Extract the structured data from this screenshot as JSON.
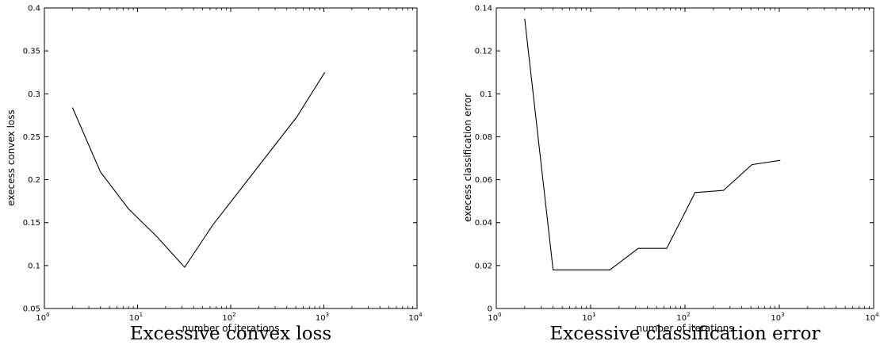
{
  "chart_data": [
    {
      "type": "line",
      "caption": "Excessive convex loss",
      "xlabel": "number of iterations",
      "ylabel": "execess convex loss",
      "xscale": "log",
      "xlim": [
        1,
        10000
      ],
      "ylim": [
        0.05,
        0.4
      ],
      "xticks": [
        1,
        10,
        100,
        1000,
        10000
      ],
      "xtick_labels": [
        {
          "base": "10",
          "exp": "0"
        },
        {
          "base": "10",
          "exp": "1"
        },
        {
          "base": "10",
          "exp": "2"
        },
        {
          "base": "10",
          "exp": "3"
        },
        {
          "base": "10",
          "exp": "4"
        }
      ],
      "yticks": [
        0.05,
        0.1,
        0.15,
        0.2,
        0.25,
        0.3,
        0.35,
        0.4
      ],
      "ytick_labels": [
        "0.05",
        "0.1",
        "0.15",
        "0.2",
        "0.25",
        "0.3",
        "0.35",
        "0.4"
      ],
      "grid": false,
      "series": [
        {
          "x": [
            2,
            4,
            8,
            16,
            32,
            64,
            128,
            256,
            512,
            1024
          ],
          "y": [
            0.284,
            0.209,
            0.166,
            0.134,
            0.098,
            0.147,
            0.189,
            0.231,
            0.273,
            0.325
          ]
        }
      ]
    },
    {
      "type": "line",
      "caption": "Excessive classification error",
      "xlabel": "number of iterations",
      "ylabel": "execess classification error",
      "xscale": "log",
      "xlim": [
        1,
        10000
      ],
      "ylim": [
        0,
        0.14
      ],
      "xticks": [
        1,
        10,
        100,
        1000,
        10000
      ],
      "xtick_labels": [
        {
          "base": "10",
          "exp": "0"
        },
        {
          "base": "10",
          "exp": "1"
        },
        {
          "base": "10",
          "exp": "2"
        },
        {
          "base": "10",
          "exp": "3"
        },
        {
          "base": "10",
          "exp": "4"
        }
      ],
      "yticks": [
        0,
        0.02,
        0.04,
        0.06,
        0.08,
        0.1,
        0.12,
        0.14
      ],
      "ytick_labels": [
        "0",
        "0.02",
        "0.04",
        "0.06",
        "0.08",
        "0.1",
        "0.12",
        "0.14"
      ],
      "grid": false,
      "series": [
        {
          "x": [
            2,
            4,
            8,
            16,
            32,
            64,
            128,
            256,
            512,
            1024
          ],
          "y": [
            0.135,
            0.018,
            0.018,
            0.018,
            0.028,
            0.028,
            0.054,
            0.055,
            0.067,
            0.069
          ]
        }
      ]
    }
  ]
}
